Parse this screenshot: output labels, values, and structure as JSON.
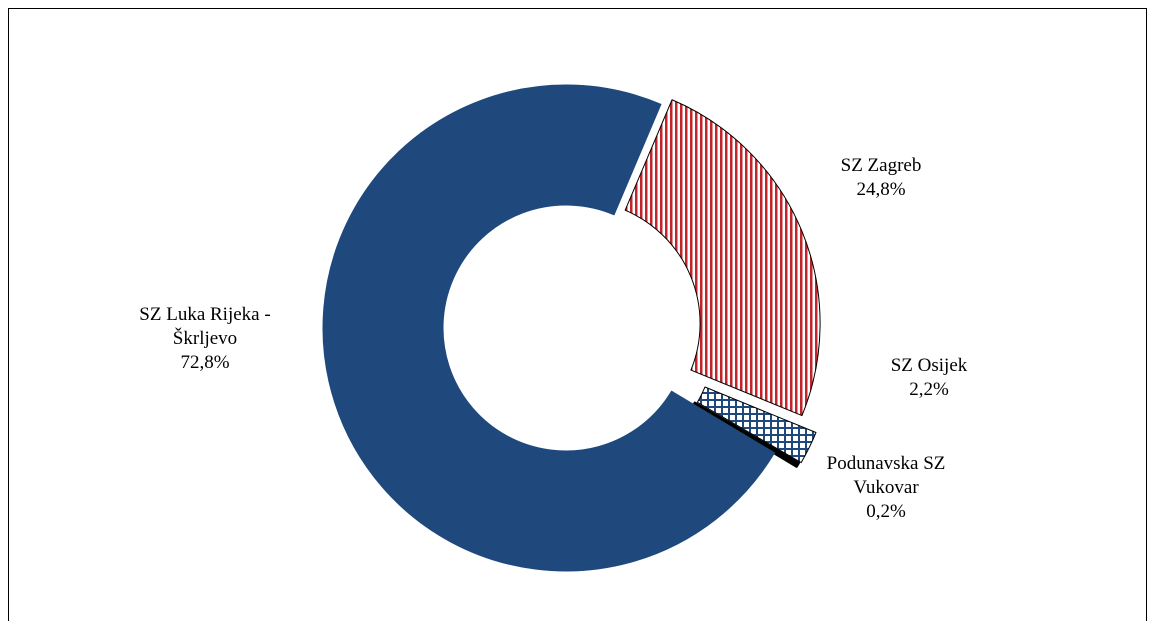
{
  "chart_data": {
    "type": "pie",
    "variant": "donut",
    "title": "",
    "slices": [
      {
        "lines": [
          "SZ Zagreb"
        ],
        "value_label": "24,8%",
        "value": 24.8,
        "fill": "stripes",
        "color": "#c0252b",
        "outline": "#000000"
      },
      {
        "lines": [
          "SZ Osijek"
        ],
        "value_label": "2,2%",
        "value": 2.2,
        "fill": "grid",
        "color": "#1f497d",
        "outline": "#000000"
      },
      {
        "lines": [
          "Podunavska SZ",
          "Vukovar"
        ],
        "value_label": "0,2%",
        "value": 0.2,
        "fill": "solid",
        "color": "#000000",
        "outline": "#000000"
      },
      {
        "lines": [
          "SZ Luka Rijeka -",
          "Škrljevo"
        ],
        "value_label": "72,8%",
        "value": 72.8,
        "fill": "solid",
        "color": "#1f497d",
        "outline": "#1f497d"
      }
    ],
    "start_angle_deg": 23,
    "legend": "none"
  }
}
